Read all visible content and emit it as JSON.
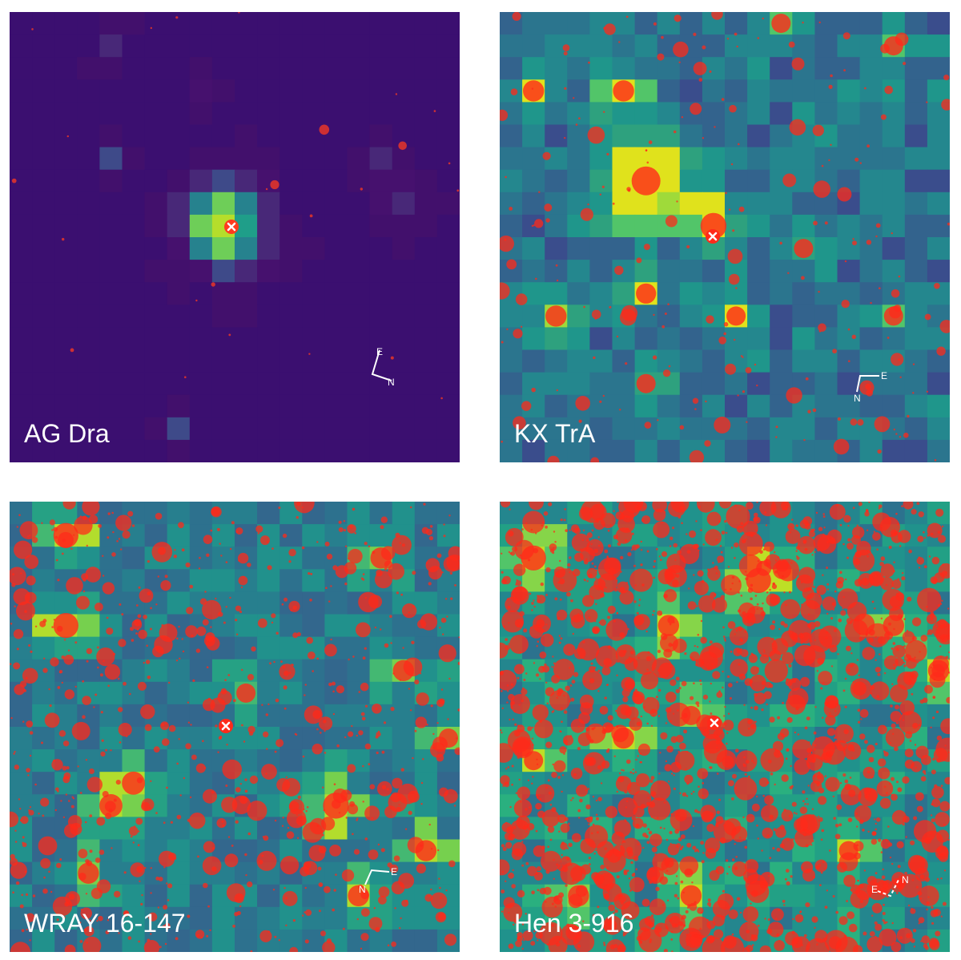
{
  "panels": [
    {
      "id": "ag-dra",
      "label": "AG Dra",
      "background": "#440f63",
      "pixel_colors": [
        "#3b0f70",
        "#42106c",
        "#46116e",
        "#482878",
        "#3e4a89",
        "#31688e",
        "#26828e",
        "#1f9e89",
        "#6ece58",
        "#b5de2b"
      ],
      "marker_color": "#ff3b1f",
      "compass": {
        "labels": [
          "E",
          "N"
        ]
      }
    },
    {
      "id": "kx-tra",
      "label": "KX TrA",
      "background": "#2a7b8e",
      "pixel_colors": [
        "#2c0f57",
        "#3a4d8c",
        "#33638d",
        "#2b758e",
        "#24878e",
        "#1f968b",
        "#2ea17e",
        "#52c569",
        "#9fda3a",
        "#e0e21c"
      ],
      "marker_color": "#ff2a1a",
      "compass": {
        "labels": [
          "E",
          "N"
        ]
      }
    },
    {
      "id": "wray-16-147",
      "label": "WRAY 16-147",
      "background": "#2a788e",
      "pixel_colors": [
        "#2c1758",
        "#3a5a8c",
        "#33678d",
        "#2d718e",
        "#277f8e",
        "#21918c",
        "#26a184",
        "#44b872",
        "#76d04e",
        "#b2dd2d"
      ],
      "marker_color": "#ff2a1a",
      "compass": {
        "labels": [
          "E",
          "N"
        ]
      }
    },
    {
      "id": "hen-3-916",
      "label": "Hen 3-916",
      "background": "#21918c",
      "pixel_colors": [
        "#2b1455",
        "#3b528b",
        "#2c728e",
        "#24868e",
        "#20928c",
        "#22a085",
        "#2ab07f",
        "#52c569",
        "#86d549",
        "#bddf26"
      ],
      "marker_color": "#ff2a1a",
      "compass": {
        "labels": [
          "E",
          "N"
        ]
      }
    }
  ]
}
